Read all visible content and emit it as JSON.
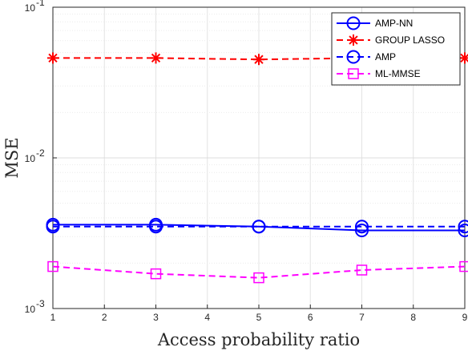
{
  "chart_data": {
    "type": "line",
    "title": "",
    "xlabel": "Access probability ratio",
    "ylabel": "MSE",
    "x": [
      1,
      3,
      5,
      7,
      9
    ],
    "xlim": [
      1,
      9
    ],
    "xticks": [
      "1",
      "2",
      "3",
      "4",
      "5",
      "6",
      "7",
      "8",
      "9"
    ],
    "ylim": [
      0.001,
      0.1
    ],
    "yscale": "log",
    "yticks": [
      {
        "base": "10",
        "exp": "-3"
      },
      {
        "base": "10",
        "exp": "-2"
      },
      {
        "base": "10",
        "exp": "-1"
      }
    ],
    "grid": true,
    "legend_position": "top-right",
    "series": [
      {
        "name": "AMP-NN",
        "values": [
          0.0036,
          0.0036,
          0.0035,
          0.0033,
          0.0033
        ],
        "color": "#0000ff",
        "dash": "solid",
        "marker": "circle"
      },
      {
        "name": "GROUP LASSO",
        "values": [
          0.046,
          0.046,
          0.045,
          0.046,
          0.046
        ],
        "color": "#ff0000",
        "dash": "dashed",
        "marker": "asterisk"
      },
      {
        "name": "AMP",
        "values": [
          0.0035,
          0.0035,
          0.0035,
          0.0035,
          0.0035
        ],
        "color": "#0000ff",
        "dash": "dashed",
        "marker": "circle"
      },
      {
        "name": "ML-MMSE",
        "values": [
          0.0019,
          0.0017,
          0.0016,
          0.0018,
          0.0019
        ],
        "color": "#ff00ff",
        "dash": "dashed",
        "marker": "square"
      }
    ]
  }
}
